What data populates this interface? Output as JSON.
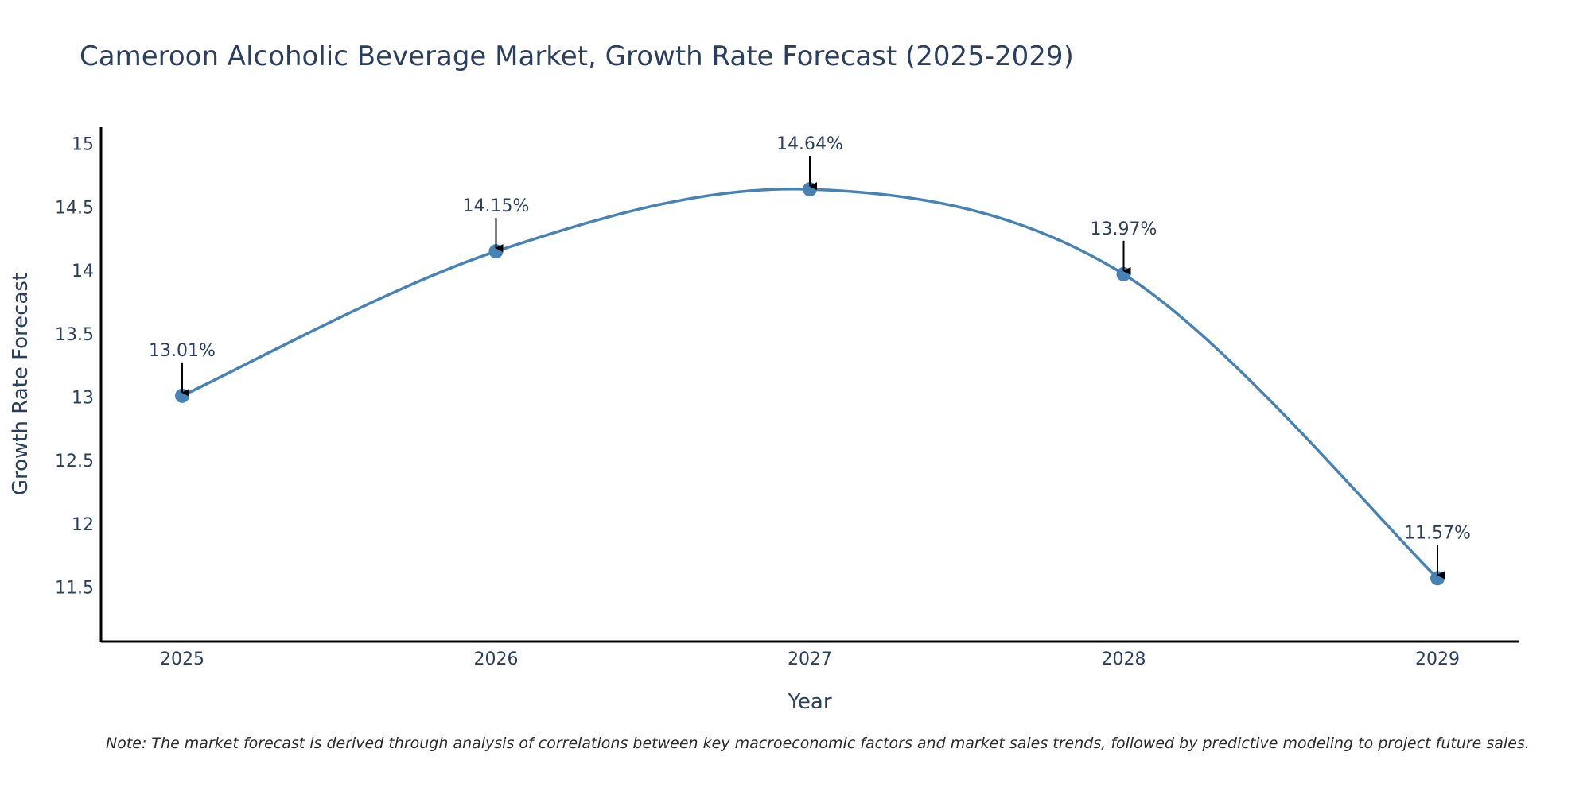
{
  "chart_data": {
    "type": "line",
    "title": "Cameroon Alcoholic Beverage Market, Growth Rate Forecast (2025-2029)",
    "xlabel": "Year",
    "ylabel": "Growth Rate Forecast",
    "categories": [
      "2025",
      "2026",
      "2027",
      "2028",
      "2029"
    ],
    "series": [
      {
        "name": "Growth Rate Forecast",
        "values": [
          13.01,
          14.15,
          14.64,
          13.97,
          11.57
        ]
      }
    ],
    "data_labels": [
      "13.01%",
      "14.15%",
      "14.64%",
      "13.97%",
      "11.57%"
    ],
    "yticks": [
      11.5,
      12,
      12.5,
      13,
      13.5,
      14,
      14.5,
      15
    ],
    "ytick_labels": [
      "11.5",
      "12",
      "12.5",
      "13",
      "13.5",
      "14",
      "14.5",
      "15"
    ],
    "ylim": [
      11.07,
      15.13
    ],
    "grid": false,
    "line_shape": "spline",
    "note": "Note: The market forecast is derived through analysis of correlations between key macroeconomic factors and market sales trends, followed by predictive modeling to project future sales.",
    "colors": {
      "line": "#4682B4",
      "text": "#2a3f5f",
      "axis": "#000000",
      "arrow": "#000000"
    }
  }
}
